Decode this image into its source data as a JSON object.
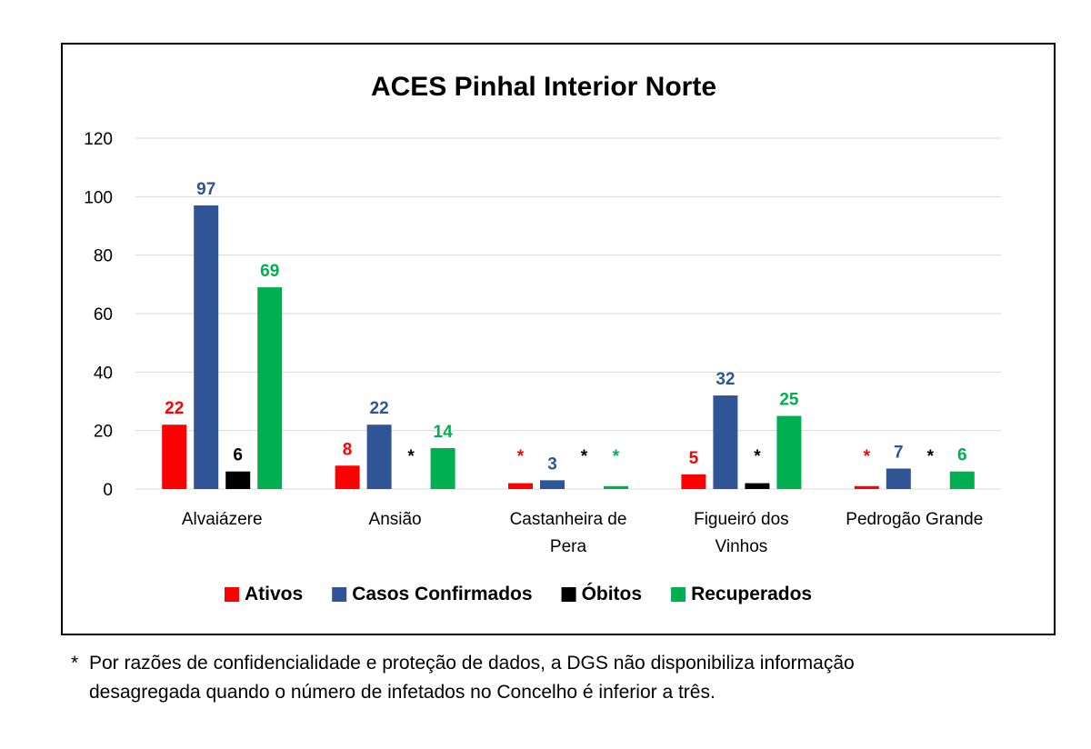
{
  "chart_data": {
    "type": "bar",
    "title": "ACES Pinhal Interior Norte",
    "categories": [
      [
        "Alvaiázere"
      ],
      [
        "Ansião"
      ],
      [
        "Castanheira de",
        "Pera"
      ],
      [
        "Figueiró dos",
        "Vinhos"
      ],
      [
        "Pedrogão Grande"
      ]
    ],
    "ylim": [
      0,
      120
    ],
    "yticks": [
      0,
      20,
      40,
      60,
      80,
      100,
      120
    ],
    "grid": true,
    "legend_position": "bottom",
    "series": [
      {
        "name": "Ativos",
        "color": "#ff0000",
        "values": [
          22,
          8,
          2,
          5,
          1
        ],
        "labels": [
          "22",
          "8",
          "*",
          "5",
          "*"
        ]
      },
      {
        "name": "Casos Confirmados",
        "color": "#2f5597",
        "values": [
          97,
          22,
          3,
          32,
          7
        ],
        "labels": [
          "97",
          "22",
          "3",
          "32",
          "7"
        ]
      },
      {
        "name": "Óbitos",
        "color": "#000000",
        "values": [
          6,
          0,
          0,
          2,
          0
        ],
        "labels": [
          "6",
          "*",
          "*",
          "*",
          "*"
        ]
      },
      {
        "name": "Recuperados",
        "color": "#00b050",
        "values": [
          69,
          14,
          1,
          25,
          6
        ],
        "labels": [
          "69",
          "14",
          "*",
          "25",
          "6"
        ]
      }
    ]
  },
  "footnote": {
    "star": "*",
    "line1": "Por razões de confidencialidade e proteção de dados, a DGS não disponibiliza informação",
    "line2": "desagregada quando o número de infetados no Concelho é inferior a três."
  }
}
